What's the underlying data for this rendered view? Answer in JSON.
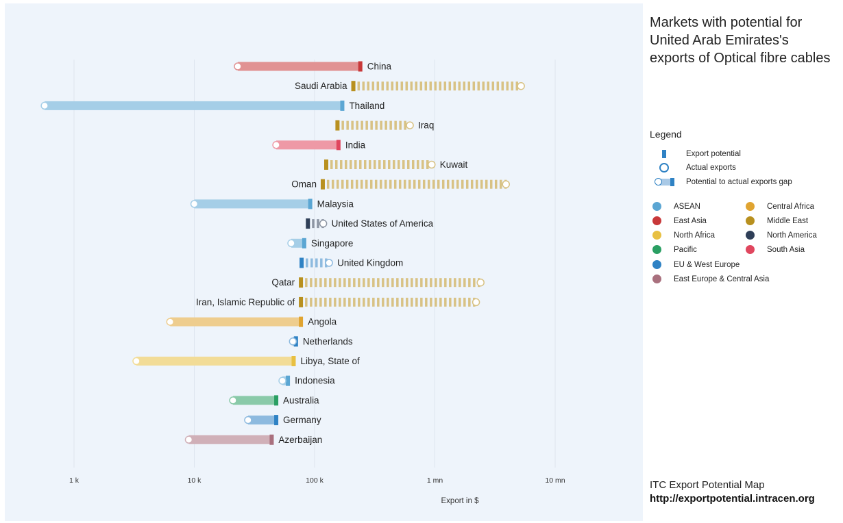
{
  "title": "Markets with potential for United Arab Emirates's exports of Optical fibre cables",
  "legend": {
    "title": "Legend",
    "items": [
      {
        "label": "Export potential",
        "icon": "export-potential-bar-icon"
      },
      {
        "label": "Actual exports",
        "icon": "actual-exports-circle-icon"
      },
      {
        "label": "Potential to actual exports gap",
        "icon": "gap-bar-icon"
      }
    ],
    "regions": [
      {
        "label": "ASEAN",
        "color": "#5ba6d3"
      },
      {
        "label": "Central Africa",
        "color": "#e0a431"
      },
      {
        "label": "East Asia",
        "color": "#c8383a"
      },
      {
        "label": "Middle East",
        "color": "#b8901f"
      },
      {
        "label": "North Africa",
        "color": "#e8c042"
      },
      {
        "label": "North America",
        "color": "#2f3f58"
      },
      {
        "label": "Pacific",
        "color": "#2a9f63"
      },
      {
        "label": "South Asia",
        "color": "#e0465e"
      },
      {
        "label": "EU & West Europe",
        "color": "#2f82c4"
      },
      {
        "label": "East Europe & Central Asia",
        "color": "#a9707e"
      }
    ]
  },
  "footer": {
    "source": "ITC Export Potential Map",
    "url": "http://exportpotential.intracen.org"
  },
  "chart_data": {
    "type": "bar",
    "subtype": "dumbbell-range",
    "xlabel": "Export in $",
    "xscale": "log",
    "xlim": [
      500,
      20000000
    ],
    "ticks": [
      {
        "value": 1000,
        "label": "1 k"
      },
      {
        "value": 10000,
        "label": "10 k"
      },
      {
        "value": 100000,
        "label": "100 k"
      },
      {
        "value": 1000000,
        "label": "1 mn"
      },
      {
        "value": 10000000,
        "label": "10 mn"
      }
    ],
    "grid": true,
    "rows": [
      {
        "country": "China",
        "region": "East Asia",
        "potential": 240000,
        "actual": 23000
      },
      {
        "country": "Saudi Arabia",
        "region": "Middle East",
        "potential": 210000,
        "actual": 5200000
      },
      {
        "country": "Thailand",
        "region": "ASEAN",
        "potential": 170000,
        "actual": 570
      },
      {
        "country": "Iraq",
        "region": "Middle East",
        "potential": 155000,
        "actual": 620000
      },
      {
        "country": "India",
        "region": "South Asia",
        "potential": 158000,
        "actual": 48000
      },
      {
        "country": "Kuwait",
        "region": "Middle East",
        "potential": 125000,
        "actual": 940000
      },
      {
        "country": "Oman",
        "region": "Middle East",
        "potential": 117000,
        "actual": 3900000
      },
      {
        "country": "Malaysia",
        "region": "ASEAN",
        "potential": 92000,
        "actual": 10000
      },
      {
        "country": "United States of America",
        "region": "North America",
        "potential": 88000,
        "actual": 118000
      },
      {
        "country": "Singapore",
        "region": "ASEAN",
        "potential": 82000,
        "actual": 64000
      },
      {
        "country": "United Kingdom",
        "region": "EU & West Europe",
        "potential": 78000,
        "actual": 132000
      },
      {
        "country": "Qatar",
        "region": "Middle East",
        "potential": 77000,
        "actual": 2400000
      },
      {
        "country": "Iran, Islamic Republic of",
        "region": "Middle East",
        "potential": 77000,
        "actual": 2200000
      },
      {
        "country": "Angola",
        "region": "Central Africa",
        "potential": 77000,
        "actual": 6300
      },
      {
        "country": "Netherlands",
        "region": "EU & West Europe",
        "potential": 70000,
        "actual": 66000
      },
      {
        "country": "Libya, State of",
        "region": "North Africa",
        "potential": 67000,
        "actual": 3300
      },
      {
        "country": "Indonesia",
        "region": "ASEAN",
        "potential": 60000,
        "actual": 54000
      },
      {
        "country": "Australia",
        "region": "Pacific",
        "potential": 48000,
        "actual": 21000
      },
      {
        "country": "Germany",
        "region": "EU & West Europe",
        "potential": 48000,
        "actual": 28000
      },
      {
        "country": "Azerbaijan",
        "region": "East Europe & Central Asia",
        "potential": 44000,
        "actual": 9000
      }
    ]
  }
}
